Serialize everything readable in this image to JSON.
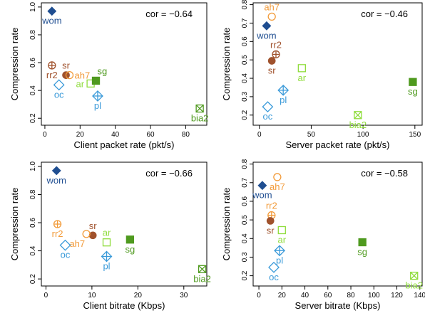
{
  "colors": {
    "navy": "#1f4e91",
    "blue": "#3a9ad9",
    "orange": "#f29a38",
    "brown": "#a0522d",
    "lime": "#8fdc3c",
    "green": "#4f9a1f",
    "text": "#000000"
  },
  "chart_data": [
    {
      "type": "scatter",
      "title": "",
      "annotation": "cor = −0.64",
      "xlabel": "Client packet rate (pkt/s)",
      "ylabel": "Compression rate",
      "xlim": [
        -2,
        92
      ],
      "ylim": [
        0.15,
        1.03
      ],
      "xticks": [
        "0",
        "20",
        "40",
        "60",
        "80"
      ],
      "xtick_values": [
        0,
        20,
        40,
        60,
        80
      ],
      "yticks": [
        "0.2",
        "0.4",
        "0.6",
        "0.8",
        "1.0"
      ],
      "ytick_values": [
        0.2,
        0.4,
        0.6,
        0.8,
        1.0
      ],
      "points": [
        {
          "name": "wom",
          "x": 4,
          "y": 0.97,
          "marker": "diamond-filled",
          "color": "navy",
          "label_pos": "below"
        },
        {
          "name": "rr2",
          "x": 4,
          "y": 0.58,
          "marker": "circle-plus",
          "color": "brown",
          "label_pos": "below"
        },
        {
          "name": "sr",
          "x": 12,
          "y": 0.51,
          "marker": "circle-filled",
          "color": "brown",
          "label_pos": "above"
        },
        {
          "name": "ah7",
          "x": 14,
          "y": 0.51,
          "marker": "circle-open",
          "color": "orange",
          "label_pos": "right"
        },
        {
          "name": "oc",
          "x": 8,
          "y": 0.44,
          "marker": "diamond-open",
          "color": "blue",
          "label_pos": "below"
        },
        {
          "name": "ar",
          "x": 26,
          "y": 0.45,
          "marker": "square-open",
          "color": "lime",
          "label_pos": "left"
        },
        {
          "name": "sg",
          "x": 29,
          "y": 0.47,
          "marker": "square-filled",
          "color": "green",
          "label_pos": "above-right"
        },
        {
          "name": "pl",
          "x": 30,
          "y": 0.36,
          "marker": "diamond-plus",
          "color": "blue",
          "label_pos": "below"
        },
        {
          "name": "bia2",
          "x": 88,
          "y": 0.27,
          "marker": "square-x",
          "color": "green",
          "label_pos": "below"
        }
      ]
    },
    {
      "type": "scatter",
      "title": "",
      "annotation": "cor = −0.46",
      "xlabel": "Server packet rate (pkt/s)",
      "ylabel": "Compression rate",
      "xlim": [
        -6,
        157
      ],
      "ylim": [
        0.145,
        0.81
      ],
      "xticks": [
        "0",
        "50",
        "100",
        "150"
      ],
      "xtick_values": [
        0,
        50,
        100,
        150
      ],
      "yticks": [
        "0.2",
        "0.3",
        "0.4",
        "0.5",
        "0.6",
        "0.7",
        "0.8"
      ],
      "ytick_values": [
        0.2,
        0.3,
        0.4,
        0.5,
        0.6,
        0.7,
        0.8
      ],
      "points": [
        {
          "name": "ah7",
          "x": 12,
          "y": 0.735,
          "marker": "circle-open",
          "color": "orange",
          "label_pos": "above"
        },
        {
          "name": "wom",
          "x": 7,
          "y": 0.685,
          "marker": "diamond-filled",
          "color": "navy",
          "label_pos": "below"
        },
        {
          "name": "rr2",
          "x": 16,
          "y": 0.53,
          "marker": "circle-plus",
          "color": "brown",
          "label_pos": "above"
        },
        {
          "name": "sr",
          "x": 12,
          "y": 0.495,
          "marker": "circle-filled",
          "color": "brown",
          "label_pos": "below"
        },
        {
          "name": "ar",
          "x": 41,
          "y": 0.455,
          "marker": "square-open",
          "color": "lime",
          "label_pos": "below"
        },
        {
          "name": "pl",
          "x": 23,
          "y": 0.335,
          "marker": "diamond-plus",
          "color": "blue",
          "label_pos": "below"
        },
        {
          "name": "oc",
          "x": 8,
          "y": 0.245,
          "marker": "diamond-open",
          "color": "blue",
          "label_pos": "below"
        },
        {
          "name": "bia2",
          "x": 95,
          "y": 0.2,
          "marker": "square-x",
          "color": "lime",
          "label_pos": "below"
        },
        {
          "name": "sg",
          "x": 148,
          "y": 0.38,
          "marker": "square-filled",
          "color": "green",
          "label_pos": "below"
        }
      ]
    },
    {
      "type": "scatter",
      "title": "",
      "annotation": "cor = −0.66",
      "xlabel": "Client bitrate (Kbps)",
      "ylabel": "Compression rate",
      "xlim": [
        -1,
        35
      ],
      "ylim": [
        0.15,
        1.03
      ],
      "xticks": [
        "0",
        "10",
        "20",
        "30"
      ],
      "xtick_values": [
        0,
        10,
        20,
        30
      ],
      "yticks": [
        "0.2",
        "0.4",
        "0.6",
        "0.8",
        "1.0"
      ],
      "ytick_values": [
        0.2,
        0.4,
        0.6,
        0.8,
        1.0
      ],
      "points": [
        {
          "name": "wom",
          "x": 2.3,
          "y": 0.97,
          "marker": "diamond-filled",
          "color": "navy",
          "label_pos": "below"
        },
        {
          "name": "rr2",
          "x": 2.5,
          "y": 0.59,
          "marker": "circle-plus",
          "color": "orange",
          "label_pos": "below"
        },
        {
          "name": "sr",
          "x": 10.2,
          "y": 0.51,
          "marker": "circle-filled",
          "color": "brown",
          "label_pos": "above"
        },
        {
          "name": "ah7",
          "x": 8.8,
          "y": 0.52,
          "marker": "circle-open",
          "color": "orange",
          "label_pos": "below-left"
        },
        {
          "name": "oc",
          "x": 4.2,
          "y": 0.44,
          "marker": "diamond-open",
          "color": "blue",
          "label_pos": "below"
        },
        {
          "name": "ar",
          "x": 13.2,
          "y": 0.46,
          "marker": "square-open",
          "color": "lime",
          "label_pos": "above"
        },
        {
          "name": "pl",
          "x": 13.2,
          "y": 0.36,
          "marker": "diamond-plus",
          "color": "blue",
          "label_pos": "below"
        },
        {
          "name": "sg",
          "x": 18.3,
          "y": 0.48,
          "marker": "square-filled",
          "color": "green",
          "label_pos": "below"
        },
        {
          "name": "bia2",
          "x": 34,
          "y": 0.27,
          "marker": "square-x",
          "color": "green",
          "label_pos": "below"
        }
      ]
    },
    {
      "type": "scatter",
      "title": "",
      "annotation": "cor = −0.58",
      "xlabel": "Server bitrate (Kbps)",
      "ylabel": "Compression rate",
      "xlim": [
        -5,
        142
      ],
      "ylim": [
        0.145,
        0.81
      ],
      "xticks": [
        "0",
        "20",
        "40",
        "60",
        "80",
        "100",
        "120",
        "140"
      ],
      "xtick_values": [
        0,
        20,
        40,
        60,
        80,
        100,
        120,
        140
      ],
      "yticks": [
        "0.2",
        "0.3",
        "0.4",
        "0.5",
        "0.6",
        "0.7",
        "0.8"
      ],
      "ytick_values": [
        0.2,
        0.3,
        0.4,
        0.5,
        0.6,
        0.7,
        0.8
      ],
      "points": [
        {
          "name": "ah7",
          "x": 16,
          "y": 0.73,
          "marker": "circle-open",
          "color": "orange",
          "label_pos": "below"
        },
        {
          "name": "wom",
          "x": 3,
          "y": 0.685,
          "marker": "diamond-filled",
          "color": "navy",
          "label_pos": "below"
        },
        {
          "name": "rr2",
          "x": 11,
          "y": 0.525,
          "marker": "circle-plus",
          "color": "orange",
          "label_pos": "above"
        },
        {
          "name": "sr",
          "x": 10,
          "y": 0.495,
          "marker": "circle-filled",
          "color": "brown",
          "label_pos": "below"
        },
        {
          "name": "ar",
          "x": 20,
          "y": 0.445,
          "marker": "square-open",
          "color": "lime",
          "label_pos": "below"
        },
        {
          "name": "pl",
          "x": 18,
          "y": 0.335,
          "marker": "diamond-plus",
          "color": "blue",
          "label_pos": "below"
        },
        {
          "name": "oc",
          "x": 13,
          "y": 0.245,
          "marker": "diamond-open",
          "color": "blue",
          "label_pos": "below"
        },
        {
          "name": "sg",
          "x": 90,
          "y": 0.38,
          "marker": "square-filled",
          "color": "green",
          "label_pos": "below"
        },
        {
          "name": "bia2",
          "x": 135,
          "y": 0.2,
          "marker": "square-x",
          "color": "lime",
          "label_pos": "below"
        }
      ]
    }
  ]
}
